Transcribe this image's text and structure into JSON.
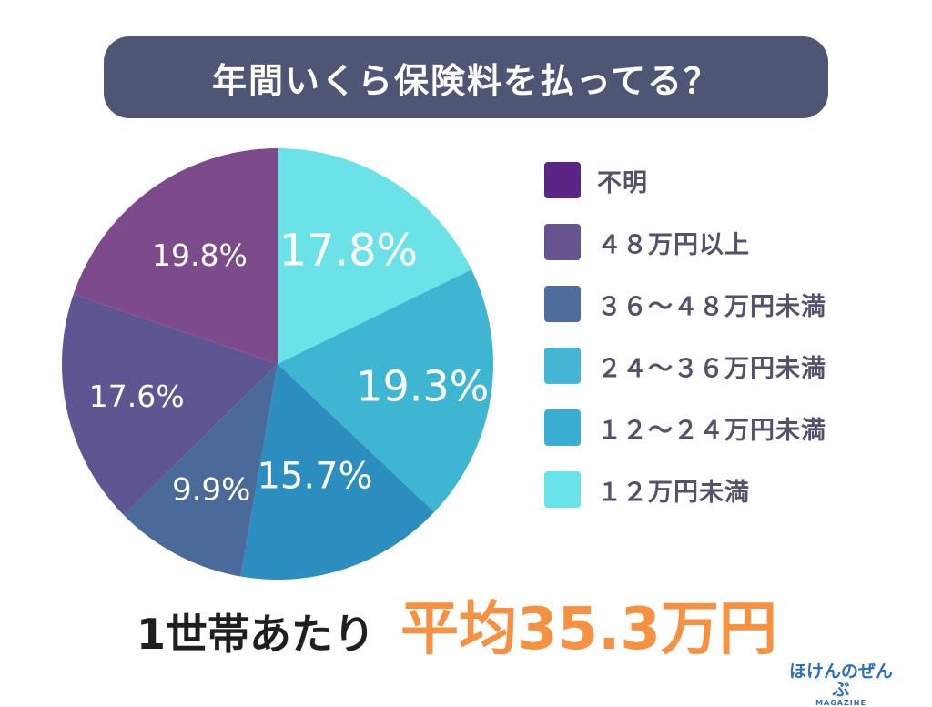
{
  "title": "年間いくら保険料を払ってる？",
  "chart_data": {
    "type": "pie",
    "title": "年間いくら保険料を払ってる？",
    "slices": [
      {
        "label": "１２万円未満",
        "value": 17.8,
        "display": "17.8%",
        "color": "#6ae2e8"
      },
      {
        "label": "１２〜２４万円未満",
        "value": 19.3,
        "display": "19.3%",
        "color": "#3eb6d2"
      },
      {
        "label": "２４〜３６万円未満",
        "value": 15.7,
        "display": "15.7%",
        "color": "#2c8dbf"
      },
      {
        "label": "３６〜４８万円未満",
        "value": 9.9,
        "display": "9.9%",
        "color": "#4a6a99"
      },
      {
        "label": "４８万円以上",
        "value": 17.6,
        "display": "17.6%",
        "color": "#5e5593"
      },
      {
        "label": "不明",
        "value": 19.8,
        "display": "19.8%",
        "color": "#7d4a8c"
      }
    ],
    "legend_position": "right",
    "legend": [
      {
        "label": "不明",
        "color": "#5b2585"
      },
      {
        "label": "４８万円以上",
        "color": "#665490"
      },
      {
        "label": "３６〜４８万円未満",
        "color": "#4e6d9d"
      },
      {
        "label": "２４〜３６万円未満",
        "color": "#44b6d4"
      },
      {
        "label": "１２〜２４万円未満",
        "color": "#3aaed2"
      },
      {
        "label": "１２万円未満",
        "color": "#69e3ea"
      }
    ]
  },
  "summary": {
    "prefix": "1世帯あたり",
    "average": "平均35.3万円"
  },
  "brand": {
    "name": "ほけんのぜんぶ",
    "sub": "MAGAZINE"
  }
}
